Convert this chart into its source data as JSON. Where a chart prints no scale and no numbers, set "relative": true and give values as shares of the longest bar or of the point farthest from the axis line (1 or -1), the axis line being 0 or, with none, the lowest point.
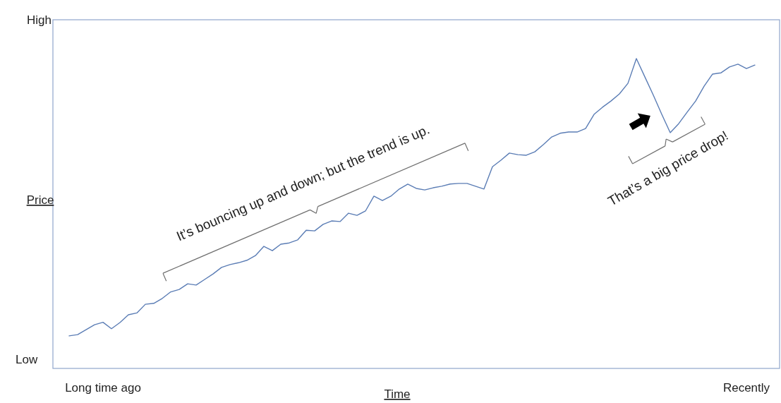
{
  "chart_data": {
    "type": "line",
    "relative": true,
    "xlabel": "Time",
    "ylabel": "Price",
    "categories": [
      null,
      null,
      null,
      null,
      "Long time ago",
      null,
      null,
      null,
      null,
      null,
      null,
      null,
      null,
      null,
      null,
      null,
      null,
      null,
      null,
      null,
      null,
      null,
      null,
      null,
      null,
      null,
      null,
      null,
      null,
      null,
      null,
      null,
      null,
      null,
      null,
      null,
      null,
      null,
      null,
      null,
      null,
      null,
      null,
      null,
      null,
      null,
      null,
      null,
      null,
      null,
      null,
      null,
      null,
      null,
      null,
      null,
      null,
      null,
      null,
      null,
      null,
      null,
      null,
      null,
      null,
      null,
      null,
      null,
      null,
      null,
      null,
      null,
      null,
      null,
      null,
      null,
      null,
      null,
      null,
      null,
      "Recently",
      null
    ],
    "series": [
      {
        "color": "#5b7db5",
        "values": [
          0.105,
          0.109,
          0.125,
          0.141,
          0.149,
          0.128,
          0.148,
          0.173,
          0.179,
          0.207,
          0.21,
          0.226,
          0.247,
          0.255,
          0.273,
          0.269,
          0.287,
          0.305,
          0.326,
          0.335,
          0.341,
          0.349,
          0.364,
          0.394,
          0.38,
          0.401,
          0.405,
          0.415,
          0.446,
          0.444,
          0.465,
          0.476,
          0.474,
          0.501,
          0.494,
          0.508,
          0.556,
          0.542,
          0.556,
          0.579,
          0.595,
          0.581,
          0.576,
          0.583,
          0.588,
          0.595,
          0.597,
          0.597,
          0.588,
          0.579,
          0.651,
          0.672,
          0.695,
          0.69,
          0.688,
          0.699,
          0.722,
          0.747,
          0.759,
          0.763,
          0.763,
          0.774,
          0.82,
          0.843,
          0.863,
          0.886,
          0.92,
          1,
          0.941,
          0.882,
          0.82,
          0.761,
          0.79,
          0.827,
          0.863,
          0.911,
          0.95,
          0.954,
          0.973,
          0.982,
          0.968,
          0.979
        ]
      }
    ],
    "annotations": [
      "High",
      "Low",
      "It’s bouncing up and down; but the trend is up.",
      "That’s a big price drop!"
    ]
  }
}
